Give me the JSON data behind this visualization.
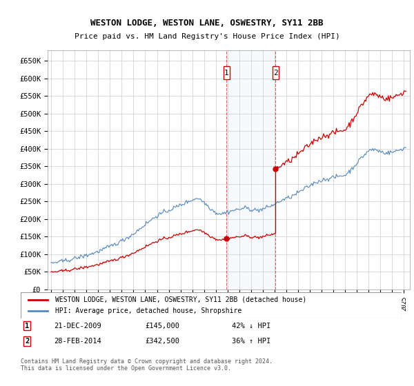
{
  "title": "WESTON LODGE, WESTON LANE, OSWESTRY, SY11 2BB",
  "subtitle": "Price paid vs. HM Land Registry's House Price Index (HPI)",
  "ylim": [
    0,
    680000
  ],
  "yticks": [
    0,
    50000,
    100000,
    150000,
    200000,
    250000,
    300000,
    350000,
    400000,
    450000,
    500000,
    550000,
    600000,
    650000
  ],
  "ytick_labels": [
    "£0",
    "£50K",
    "£100K",
    "£150K",
    "£200K",
    "£250K",
    "£300K",
    "£350K",
    "£400K",
    "£450K",
    "£500K",
    "£550K",
    "£600K",
    "£650K"
  ],
  "hpi_color": "#5588bb",
  "sale_color": "#cc0000",
  "background_color": "#ffffff",
  "grid_color": "#cccccc",
  "transaction1_year": 2009,
  "transaction1_month": 12,
  "transaction1_value": 145000,
  "transaction2_year": 2014,
  "transaction2_month": 2,
  "transaction2_value": 342500,
  "legend_sale_label": "WESTON LODGE, WESTON LANE, OSWESTRY, SY11 2BB (detached house)",
  "legend_hpi_label": "HPI: Average price, detached house, Shropshire",
  "note1_label": "1",
  "note1_date": "21-DEC-2009",
  "note1_price": "£145,000",
  "note1_hpi": "42% ↓ HPI",
  "note2_label": "2",
  "note2_date": "28-FEB-2014",
  "note2_price": "£342,500",
  "note2_hpi": "36% ↑ HPI",
  "footer": "Contains HM Land Registry data © Crown copyright and database right 2024.\nThis data is licensed under the Open Government Licence v3.0."
}
